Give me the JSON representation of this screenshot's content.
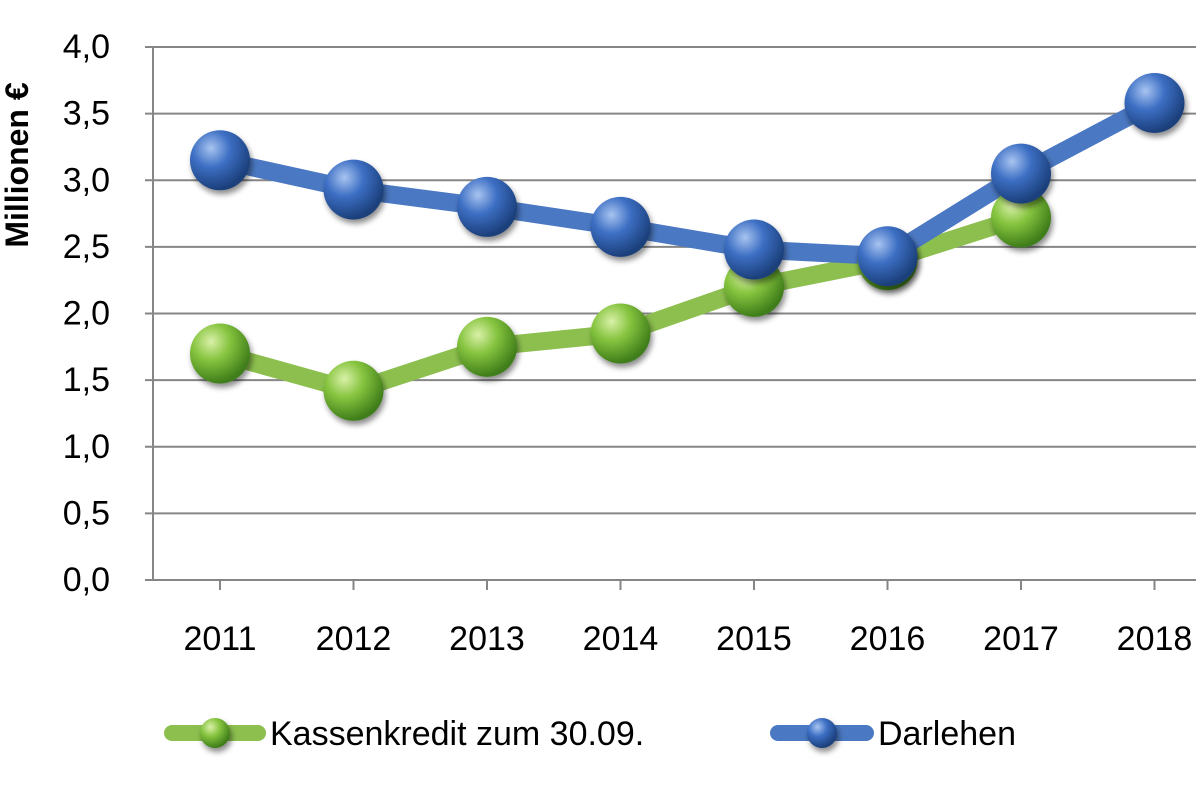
{
  "chart_data": {
    "type": "line",
    "title": "",
    "xlabel": "",
    "ylabel": "Millionen €",
    "ylim": [
      0,
      4.0
    ],
    "yticks": [
      "0,0",
      "0,5",
      "1,0",
      "1,5",
      "2,0",
      "2,5",
      "3,0",
      "3,5",
      "4,0"
    ],
    "ytick_values": [
      0,
      0.5,
      1.0,
      1.5,
      2.0,
      2.5,
      3.0,
      3.5,
      4.0
    ],
    "categories": [
      "2011",
      "2012",
      "2013",
      "2014",
      "2015",
      "2016",
      "2017",
      "2018"
    ],
    "grid": "horizontal",
    "legend_position": "bottom",
    "series": [
      {
        "name": "Kassenkredit zum 30.09.",
        "color": "#8cbf4e",
        "marker_color": "#7fbf3a",
        "values": [
          1.7,
          1.42,
          1.75,
          1.85,
          2.2,
          2.4,
          2.72,
          null
        ]
      },
      {
        "name": "Darlehen",
        "color": "#4a78c2",
        "marker_color": "#3a6fc0",
        "values": [
          3.15,
          2.93,
          2.8,
          2.65,
          2.48,
          2.43,
          3.05,
          3.58
        ]
      }
    ]
  }
}
